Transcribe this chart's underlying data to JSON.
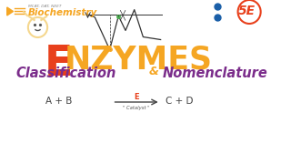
{
  "bg_color": "#ffffff",
  "title_color": "#f5a623",
  "title_E_color": "#e8401c",
  "subtitle_left": "Classification",
  "subtitle_right": "Nomenclature",
  "subtitle_color": "#7b2d8b",
  "ampersand": "&",
  "ampersand_color": "#f5a623",
  "biochem_text": "Biochemistry",
  "biochem_color": "#f5a623",
  "top_text": "MCAT, DAT, NEET",
  "top_text_color": "#888888",
  "equation_left": "A + B",
  "equation_right": "C + D",
  "equation_color": "#444444",
  "arrow_color": "#444444",
  "enzyme_label": "E",
  "catalyst_label": "\" Catalyst \"",
  "enzyme_label_color": "#e8401c",
  "catalyst_color": "#555555",
  "dot_color": "#1a5fa8",
  "five_color": "#e8401c",
  "circle_color": "#e8401c",
  "play_color": "#f5a623",
  "face_color": "#f5d78e",
  "curve_color": "#333333",
  "orange_dot_color": "#f5a623",
  "green_dot_color": "#4caf50"
}
